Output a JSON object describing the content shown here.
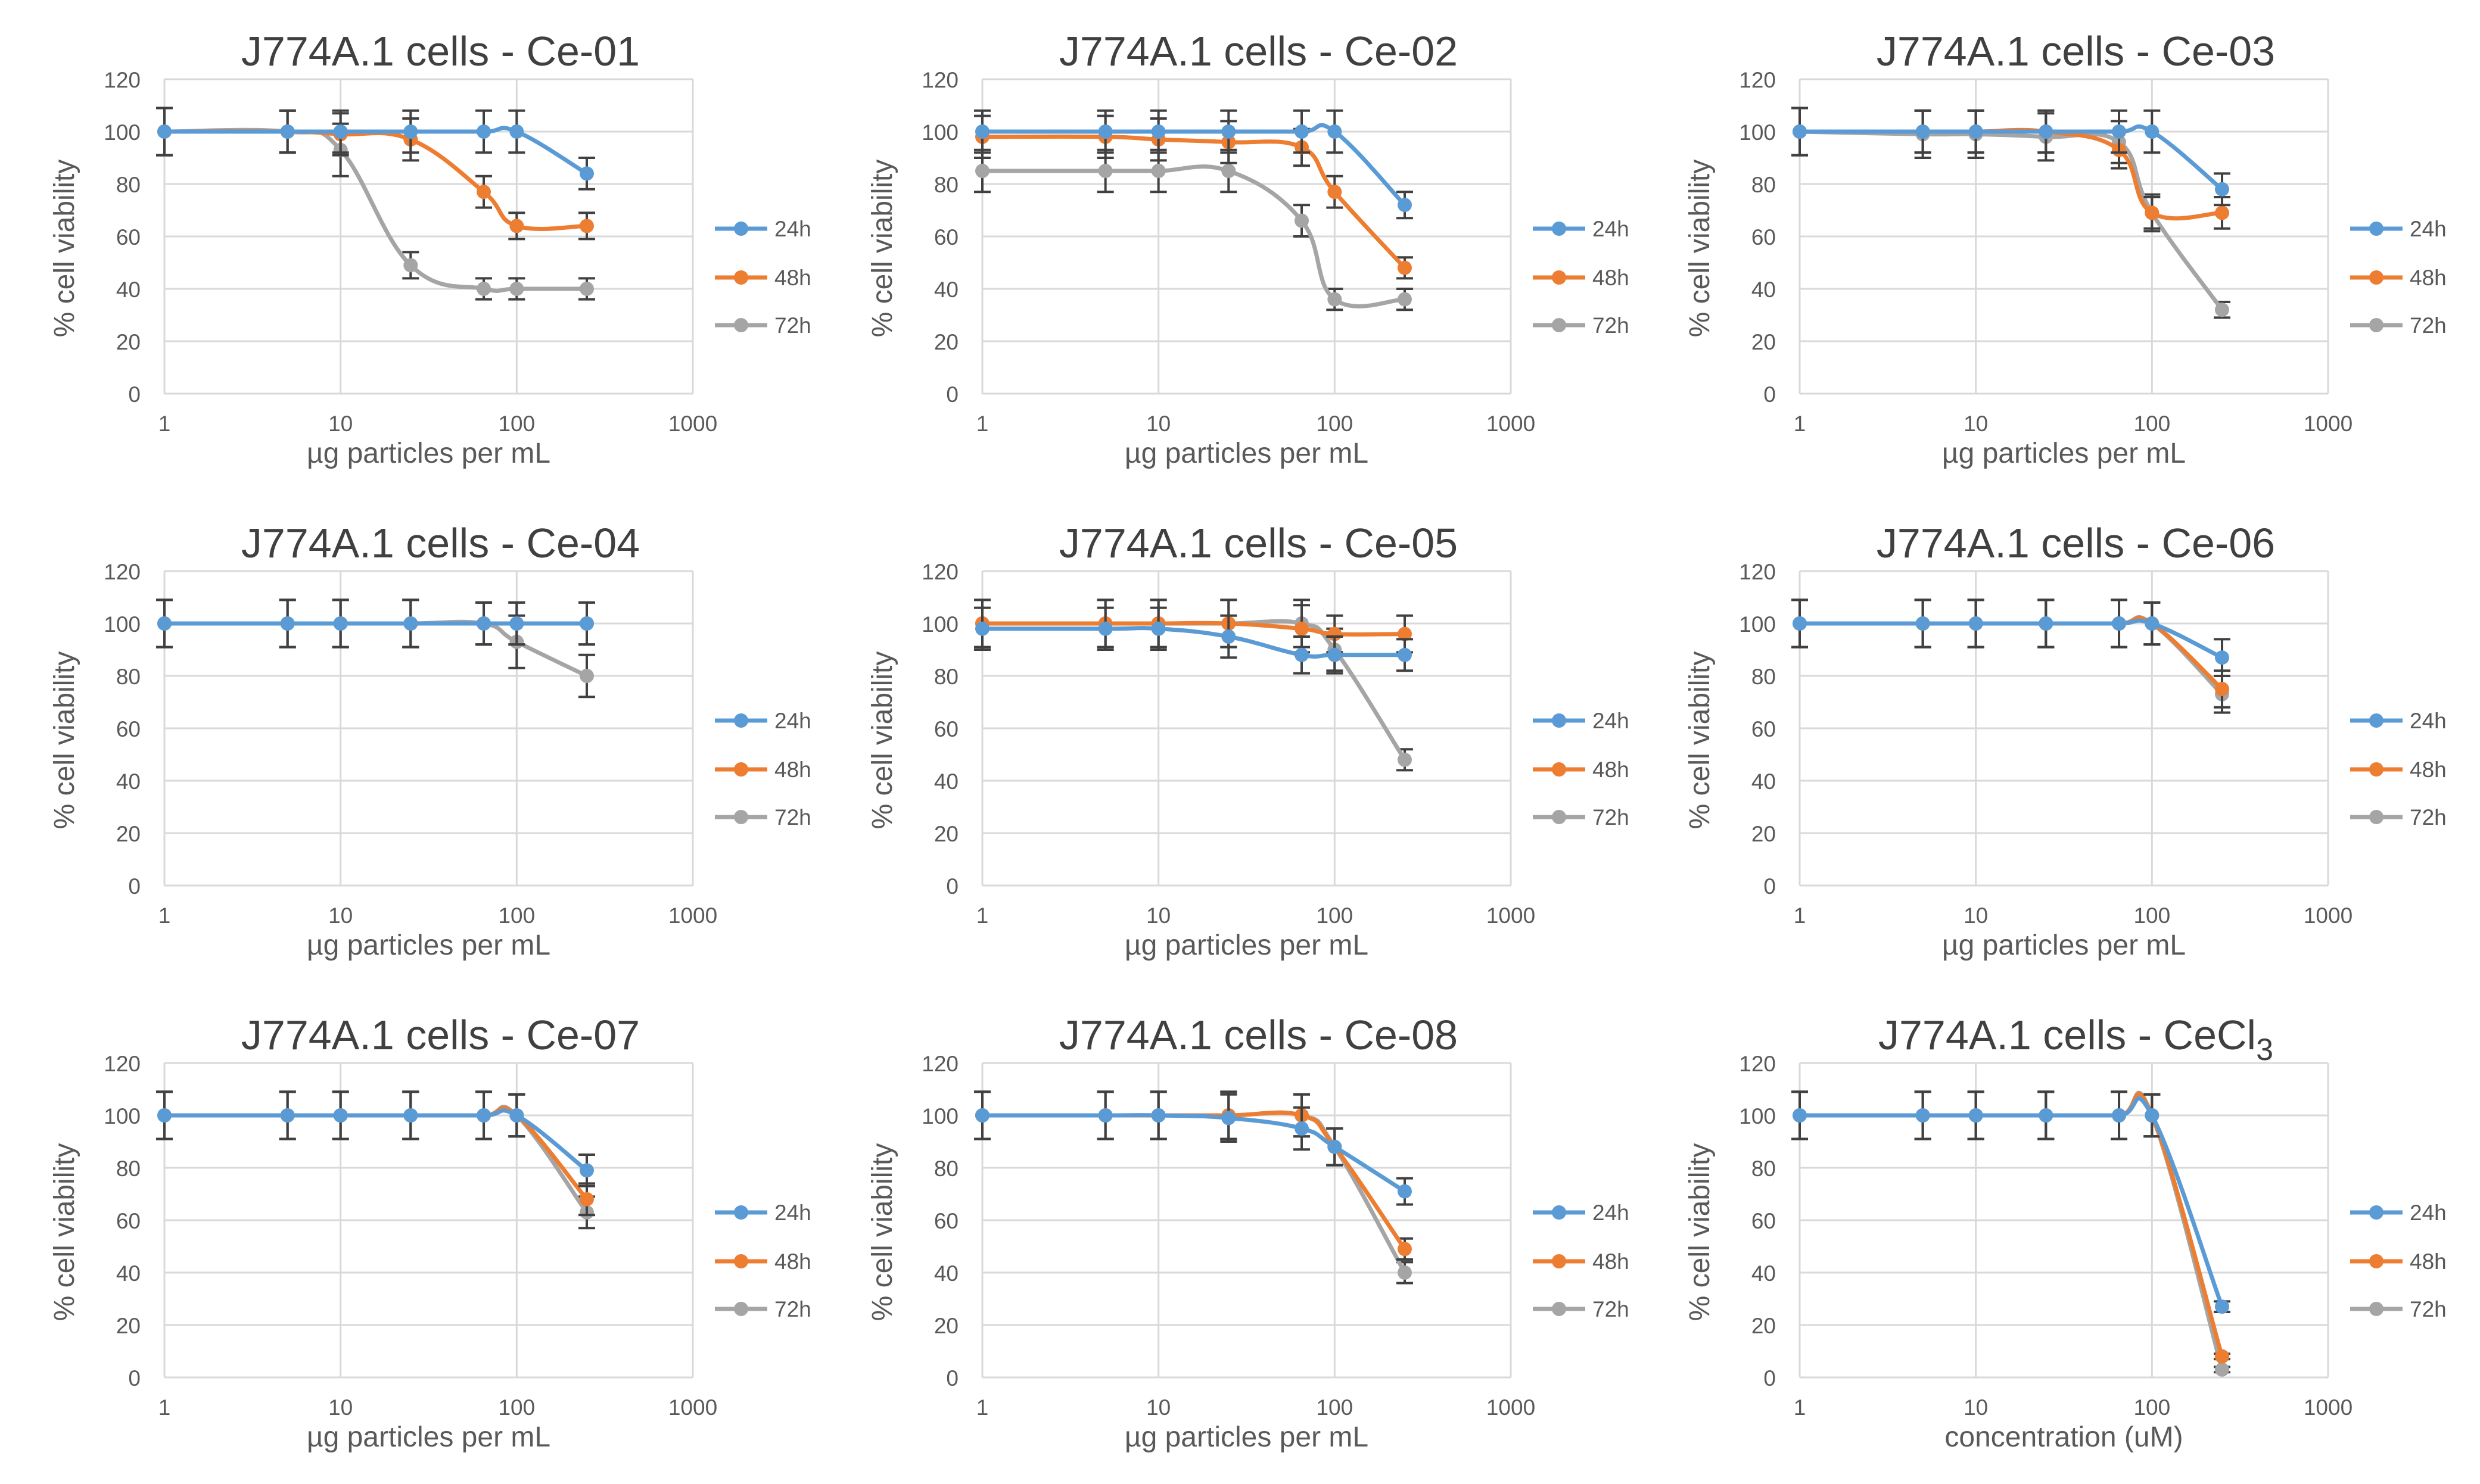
{
  "colors": {
    "24h": "#5b9bd5",
    "48h": "#ed7d31",
    "72h": "#a5a5a5",
    "grid": "#d9d9d9",
    "axis_text": "#595959",
    "title_text": "#404040",
    "error_bar": "#404040"
  },
  "chart_data": [
    {
      "type": "line",
      "title": "J774A.1 cells - Ce-01",
      "title_sub": "",
      "xlabel": "µg particles per mL",
      "ylabel": "% cell viability",
      "xscale": "log",
      "xlim": [
        1,
        1000
      ],
      "ylim": [
        0,
        120
      ],
      "xticks": [
        "1",
        "10",
        "100",
        "1000"
      ],
      "yticks": [
        "0",
        "20",
        "40",
        "60",
        "80",
        "100",
        "120"
      ],
      "grid": true,
      "legend": "right",
      "x": [
        1,
        5,
        10,
        25,
        65,
        100,
        250
      ],
      "series": [
        {
          "name": "24h",
          "values": [
            100,
            100,
            100,
            100,
            100,
            100,
            84
          ],
          "errors": [
            9,
            8,
            8,
            8,
            8,
            8,
            6
          ]
        },
        {
          "name": "48h",
          "values": [
            100,
            100,
            99,
            97,
            77,
            64,
            64
          ],
          "errors": [
            9,
            8,
            8,
            8,
            6,
            5,
            5
          ]
        },
        {
          "name": "72h",
          "values": [
            100,
            100,
            93,
            49,
            40,
            40,
            40
          ],
          "errors": [
            9,
            8,
            10,
            5,
            4,
            4,
            4
          ]
        }
      ]
    },
    {
      "type": "line",
      "title": "J774A.1 cells - Ce-02",
      "title_sub": "",
      "xlabel": "µg particles per mL",
      "ylabel": "% cell viability",
      "xscale": "log",
      "xlim": [
        1,
        1000
      ],
      "ylim": [
        0,
        120
      ],
      "xticks": [
        "1",
        "10",
        "100",
        "1000"
      ],
      "yticks": [
        "0",
        "20",
        "40",
        "60",
        "80",
        "100",
        "120"
      ],
      "grid": true,
      "legend": "right",
      "x": [
        1,
        5,
        10,
        25,
        65,
        100,
        250
      ],
      "series": [
        {
          "name": "24h",
          "values": [
            100,
            100,
            100,
            100,
            100,
            100,
            72
          ],
          "errors": [
            8,
            8,
            8,
            8,
            8,
            8,
            5
          ]
        },
        {
          "name": "48h",
          "values": [
            98,
            98,
            97,
            96,
            94,
            77,
            48
          ],
          "errors": [
            8,
            8,
            8,
            8,
            7,
            6,
            4
          ]
        },
        {
          "name": "72h",
          "values": [
            85,
            85,
            85,
            85,
            66,
            36,
            36
          ],
          "errors": [
            8,
            8,
            8,
            8,
            6,
            4,
            4
          ]
        }
      ]
    },
    {
      "type": "line",
      "title": "J774A.1 cells - Ce-03",
      "title_sub": "",
      "xlabel": "µg particles per mL",
      "ylabel": "% cell viability",
      "xscale": "log",
      "xlim": [
        1,
        1000
      ],
      "ylim": [
        0,
        120
      ],
      "xticks": [
        "1",
        "10",
        "100",
        "1000"
      ],
      "yticks": [
        "0",
        "20",
        "40",
        "60",
        "80",
        "100",
        "120"
      ],
      "grid": true,
      "legend": "right",
      "x": [
        1,
        5,
        10,
        25,
        65,
        100,
        250
      ],
      "series": [
        {
          "name": "24h",
          "values": [
            100,
            100,
            100,
            100,
            100,
            100,
            78
          ],
          "errors": [
            9,
            8,
            8,
            8,
            8,
            8,
            6
          ]
        },
        {
          "name": "48h",
          "values": [
            100,
            100,
            100,
            100,
            93,
            69,
            69
          ],
          "errors": [
            9,
            8,
            8,
            8,
            7,
            6,
            6
          ]
        },
        {
          "name": "72h",
          "values": [
            100,
            99,
            99,
            98,
            96,
            69,
            32
          ],
          "errors": [
            9,
            9,
            9,
            9,
            8,
            7,
            3
          ]
        }
      ]
    },
    {
      "type": "line",
      "title": "J774A.1 cells - Ce-04",
      "title_sub": "",
      "xlabel": "µg particles per mL",
      "ylabel": "% cell viability",
      "xscale": "log",
      "xlim": [
        1,
        1000
      ],
      "ylim": [
        0,
        120
      ],
      "xticks": [
        "1",
        "10",
        "100",
        "1000"
      ],
      "yticks": [
        "0",
        "20",
        "40",
        "60",
        "80",
        "100",
        "120"
      ],
      "grid": true,
      "legend": "right",
      "x": [
        1,
        5,
        10,
        25,
        65,
        100,
        250
      ],
      "series": [
        {
          "name": "24h",
          "values": [
            100,
            100,
            100,
            100,
            100,
            100,
            100
          ],
          "errors": [
            9,
            9,
            9,
            9,
            8,
            8,
            8
          ]
        },
        {
          "name": "48h",
          "values": [
            100,
            100,
            100,
            100,
            100,
            100,
            100
          ],
          "errors": [
            9,
            9,
            9,
            9,
            8,
            8,
            8
          ]
        },
        {
          "name": "72h",
          "values": [
            100,
            100,
            100,
            100,
            100,
            93,
            80
          ],
          "errors": [
            9,
            9,
            9,
            9,
            8,
            10,
            8
          ]
        }
      ]
    },
    {
      "type": "line",
      "title": "J774A.1 cells - Ce-05",
      "title_sub": "",
      "xlabel": "µg particles per mL",
      "ylabel": "% cell viability",
      "xscale": "log",
      "xlim": [
        1,
        1000
      ],
      "ylim": [
        0,
        120
      ],
      "xticks": [
        "1",
        "10",
        "100",
        "1000"
      ],
      "yticks": [
        "0",
        "20",
        "40",
        "60",
        "80",
        "100",
        "120"
      ],
      "grid": true,
      "legend": "right",
      "x": [
        1,
        5,
        10,
        25,
        65,
        100,
        250
      ],
      "series": [
        {
          "name": "24h",
          "values": [
            98,
            98,
            98,
            95,
            88,
            88,
            88
          ],
          "errors": [
            8,
            8,
            8,
            8,
            7,
            7,
            6
          ]
        },
        {
          "name": "48h",
          "values": [
            100,
            100,
            100,
            100,
            98,
            96,
            96
          ],
          "errors": [
            9,
            9,
            9,
            9,
            9,
            7,
            7
          ]
        },
        {
          "name": "72h",
          "values": [
            100,
            100,
            100,
            100,
            100,
            90,
            48
          ],
          "errors": [
            9,
            9,
            9,
            9,
            9,
            8,
            4
          ]
        }
      ]
    },
    {
      "type": "line",
      "title": "J774A.1 cells - Ce-06",
      "title_sub": "",
      "xlabel": "µg particles per mL",
      "ylabel": "% cell viability",
      "xscale": "log",
      "xlim": [
        1,
        1000
      ],
      "ylim": [
        0,
        120
      ],
      "xticks": [
        "1",
        "10",
        "100",
        "1000"
      ],
      "yticks": [
        "0",
        "20",
        "40",
        "60",
        "80",
        "100",
        "120"
      ],
      "grid": true,
      "legend": "right",
      "x": [
        1,
        5,
        10,
        25,
        65,
        100,
        250
      ],
      "series": [
        {
          "name": "24h",
          "values": [
            100,
            100,
            100,
            100,
            100,
            100,
            87
          ],
          "errors": [
            9,
            9,
            9,
            9,
            9,
            8,
            7
          ]
        },
        {
          "name": "48h",
          "values": [
            100,
            100,
            100,
            100,
            100,
            100,
            75
          ],
          "errors": [
            9,
            9,
            9,
            9,
            9,
            8,
            7
          ]
        },
        {
          "name": "72h",
          "values": [
            100,
            100,
            100,
            100,
            100,
            100,
            73
          ],
          "errors": [
            9,
            9,
            9,
            9,
            9,
            8,
            7
          ]
        }
      ]
    },
    {
      "type": "line",
      "title": "J774A.1 cells - Ce-07",
      "title_sub": "",
      "xlabel": "µg particles per mL",
      "ylabel": "% cell viability",
      "xscale": "log",
      "xlim": [
        1,
        1000
      ],
      "ylim": [
        0,
        120
      ],
      "xticks": [
        "1",
        "10",
        "100",
        "1000"
      ],
      "yticks": [
        "0",
        "20",
        "40",
        "60",
        "80",
        "100",
        "120"
      ],
      "grid": true,
      "legend": "right",
      "x": [
        1,
        5,
        10,
        25,
        65,
        100,
        250
      ],
      "series": [
        {
          "name": "24h",
          "values": [
            100,
            100,
            100,
            100,
            100,
            100,
            79
          ],
          "errors": [
            9,
            9,
            9,
            9,
            9,
            8,
            6
          ]
        },
        {
          "name": "48h",
          "values": [
            100,
            100,
            100,
            100,
            100,
            100,
            68
          ],
          "errors": [
            9,
            9,
            9,
            9,
            9,
            8,
            6
          ]
        },
        {
          "name": "72h",
          "values": [
            100,
            100,
            100,
            100,
            100,
            100,
            63
          ],
          "errors": [
            9,
            9,
            9,
            9,
            9,
            8,
            6
          ]
        }
      ]
    },
    {
      "type": "line",
      "title": "J774A.1 cells - Ce-08",
      "title_sub": "",
      "xlabel": "µg particles per mL",
      "ylabel": "% cell viability",
      "xscale": "log",
      "xlim": [
        1,
        1000
      ],
      "ylim": [
        0,
        120
      ],
      "xticks": [
        "1",
        "10",
        "100",
        "1000"
      ],
      "yticks": [
        "0",
        "20",
        "40",
        "60",
        "80",
        "100",
        "120"
      ],
      "grid": true,
      "legend": "right",
      "x": [
        1,
        5,
        10,
        25,
        65,
        100,
        250
      ],
      "series": [
        {
          "name": "24h",
          "values": [
            100,
            100,
            100,
            99,
            95,
            88,
            71
          ],
          "errors": [
            9,
            9,
            9,
            9,
            8,
            7,
            5
          ]
        },
        {
          "name": "48h",
          "values": [
            100,
            100,
            100,
            100,
            100,
            88,
            49
          ],
          "errors": [
            9,
            9,
            9,
            9,
            8,
            7,
            4
          ]
        },
        {
          "name": "72h",
          "values": [
            100,
            100,
            100,
            100,
            100,
            88,
            40
          ],
          "errors": [
            9,
            9,
            9,
            9,
            8,
            7,
            4
          ]
        }
      ]
    },
    {
      "type": "line",
      "title": "J774A.1 cells - CeCl",
      "title_sub": "3",
      "xlabel": "concentration (uM)",
      "ylabel": "% cell viability",
      "xscale": "log",
      "xlim": [
        1,
        1000
      ],
      "ylim": [
        0,
        120
      ],
      "xticks": [
        "1",
        "10",
        "100",
        "1000"
      ],
      "yticks": [
        "0",
        "20",
        "40",
        "60",
        "80",
        "100",
        "120"
      ],
      "grid": true,
      "legend": "right",
      "x": [
        1,
        5,
        10,
        25,
        65,
        100,
        250
      ],
      "series": [
        {
          "name": "24h",
          "values": [
            100,
            100,
            100,
            100,
            100,
            100,
            27
          ],
          "errors": [
            9,
            9,
            9,
            9,
            9,
            8,
            2
          ]
        },
        {
          "name": "48h",
          "values": [
            100,
            100,
            100,
            100,
            100,
            100,
            8
          ],
          "errors": [
            9,
            9,
            9,
            9,
            9,
            8,
            1
          ]
        },
        {
          "name": "72h",
          "values": [
            100,
            100,
            100,
            100,
            100,
            100,
            3
          ],
          "errors": [
            9,
            9,
            9,
            9,
            9,
            8,
            1
          ]
        }
      ]
    }
  ]
}
